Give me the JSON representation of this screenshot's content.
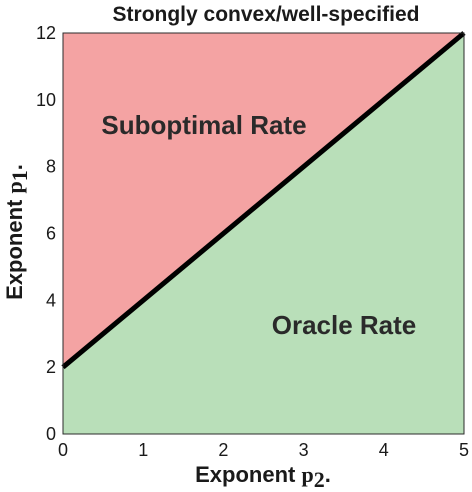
{
  "chart_data": {
    "type": "area",
    "title": "Strongly convex/well-specified",
    "xlabel_prefix": "Exponent",
    "xlabel_symbol": "p",
    "xlabel_subscript": "2",
    "xlabel_suffix": ".",
    "ylabel_prefix": "Exponent",
    "ylabel_symbol": "p",
    "ylabel_subscript": "1",
    "ylabel_suffix": ".",
    "xlim": [
      0,
      5
    ],
    "ylim": [
      0,
      12
    ],
    "x_ticks": [
      0,
      1,
      2,
      3,
      4,
      5
    ],
    "y_ticks": [
      0,
      2,
      4,
      6,
      8,
      10,
      12
    ],
    "boundary_line": {
      "x": [
        0,
        5
      ],
      "y": [
        2,
        12
      ],
      "color": "#000000"
    },
    "regions": [
      {
        "label": "Suboptimal Rate",
        "position": "above boundary",
        "color": "#f4a3a3"
      },
      {
        "label": "Oracle Rate",
        "position": "below boundary",
        "color": "#b9dfb9"
      }
    ],
    "grid": false
  }
}
